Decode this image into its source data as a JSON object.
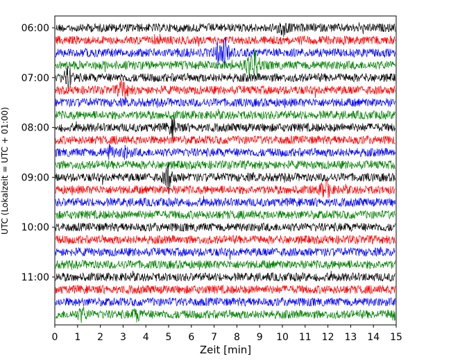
{
  "chart_data": {
    "type": "line",
    "title": "",
    "xlabel": "Zeit  [min]",
    "ylabel": "UTC (Lokalzeit = UTC + 01:00)",
    "xlim": [
      0,
      15
    ],
    "x_ticks": [
      0,
      1,
      2,
      3,
      4,
      5,
      6,
      7,
      8,
      9,
      10,
      11,
      12,
      13,
      14,
      15
    ],
    "y_tick_labels": [
      "06:00",
      "07:00",
      "08:00",
      "09:00",
      "10:00",
      "11:00"
    ],
    "y_tick_rows": [
      0,
      4,
      8,
      12,
      16,
      20
    ],
    "trace_colors": [
      "#000000",
      "#ff0000",
      "#0000ff",
      "#008000"
    ],
    "traces": [
      {
        "row": 0,
        "start": "06:00",
        "color": "#000000",
        "events": [
          {
            "x": 10.0,
            "amp": 1.3
          }
        ]
      },
      {
        "row": 1,
        "start": "06:15",
        "color": "#ff0000",
        "events": []
      },
      {
        "row": 2,
        "start": "06:30",
        "color": "#0000ff",
        "events": [
          {
            "x": 7.2,
            "amp": 1.5
          },
          {
            "x": 7.5,
            "amp": 2.0
          }
        ]
      },
      {
        "row": 3,
        "start": "06:45",
        "color": "#008000",
        "events": [
          {
            "x": 8.5,
            "amp": 1.3
          },
          {
            "x": 8.8,
            "amp": 2.5
          }
        ]
      },
      {
        "row": 4,
        "start": "07:00",
        "color": "#000000",
        "events": [
          {
            "x": 0.6,
            "amp": 1.7
          }
        ]
      },
      {
        "row": 5,
        "start": "07:15",
        "color": "#ff0000",
        "events": [
          {
            "x": 3.0,
            "amp": 1.9
          }
        ]
      },
      {
        "row": 6,
        "start": "07:30",
        "color": "#0000ff",
        "events": []
      },
      {
        "row": 7,
        "start": "07:45",
        "color": "#008000",
        "events": []
      },
      {
        "row": 8,
        "start": "08:00",
        "color": "#000000",
        "events": [
          {
            "x": 5.2,
            "amp": 1.4
          }
        ]
      },
      {
        "row": 9,
        "start": "08:15",
        "color": "#ff0000",
        "events": []
      },
      {
        "row": 10,
        "start": "08:30",
        "color": "#0000ff",
        "events": [
          {
            "x": 2.4,
            "amp": 0.9
          },
          {
            "x": 3.1,
            "amp": 0.8
          }
        ]
      },
      {
        "row": 11,
        "start": "08:45",
        "color": "#008000",
        "events": []
      },
      {
        "row": 12,
        "start": "09:00",
        "color": "#000000",
        "events": [
          {
            "x": 5.0,
            "amp": 2.2
          }
        ]
      },
      {
        "row": 13,
        "start": "09:15",
        "color": "#ff0000",
        "events": [
          {
            "x": 11.9,
            "amp": 2.0
          }
        ]
      },
      {
        "row": 14,
        "start": "09:30",
        "color": "#0000ff",
        "events": []
      },
      {
        "row": 15,
        "start": "09:45",
        "color": "#008000",
        "events": []
      },
      {
        "row": 16,
        "start": "10:00",
        "color": "#000000",
        "events": []
      },
      {
        "row": 17,
        "start": "10:15",
        "color": "#ff0000",
        "events": []
      },
      {
        "row": 18,
        "start": "10:30",
        "color": "#0000ff",
        "events": []
      },
      {
        "row": 19,
        "start": "10:45",
        "color": "#008000",
        "events": []
      },
      {
        "row": 20,
        "start": "11:00",
        "color": "#000000",
        "events": []
      },
      {
        "row": 21,
        "start": "11:15",
        "color": "#ff0000",
        "events": []
      },
      {
        "row": 22,
        "start": "11:30",
        "color": "#0000ff",
        "events": []
      },
      {
        "row": 23,
        "start": "11:45",
        "color": "#008000",
        "events": [
          {
            "x": 1.2,
            "amp": 1.0
          },
          {
            "x": 3.6,
            "amp": 0.8
          },
          {
            "x": 14.9,
            "amp": 0.9
          }
        ]
      }
    ],
    "grid": false,
    "legend": "none"
  }
}
